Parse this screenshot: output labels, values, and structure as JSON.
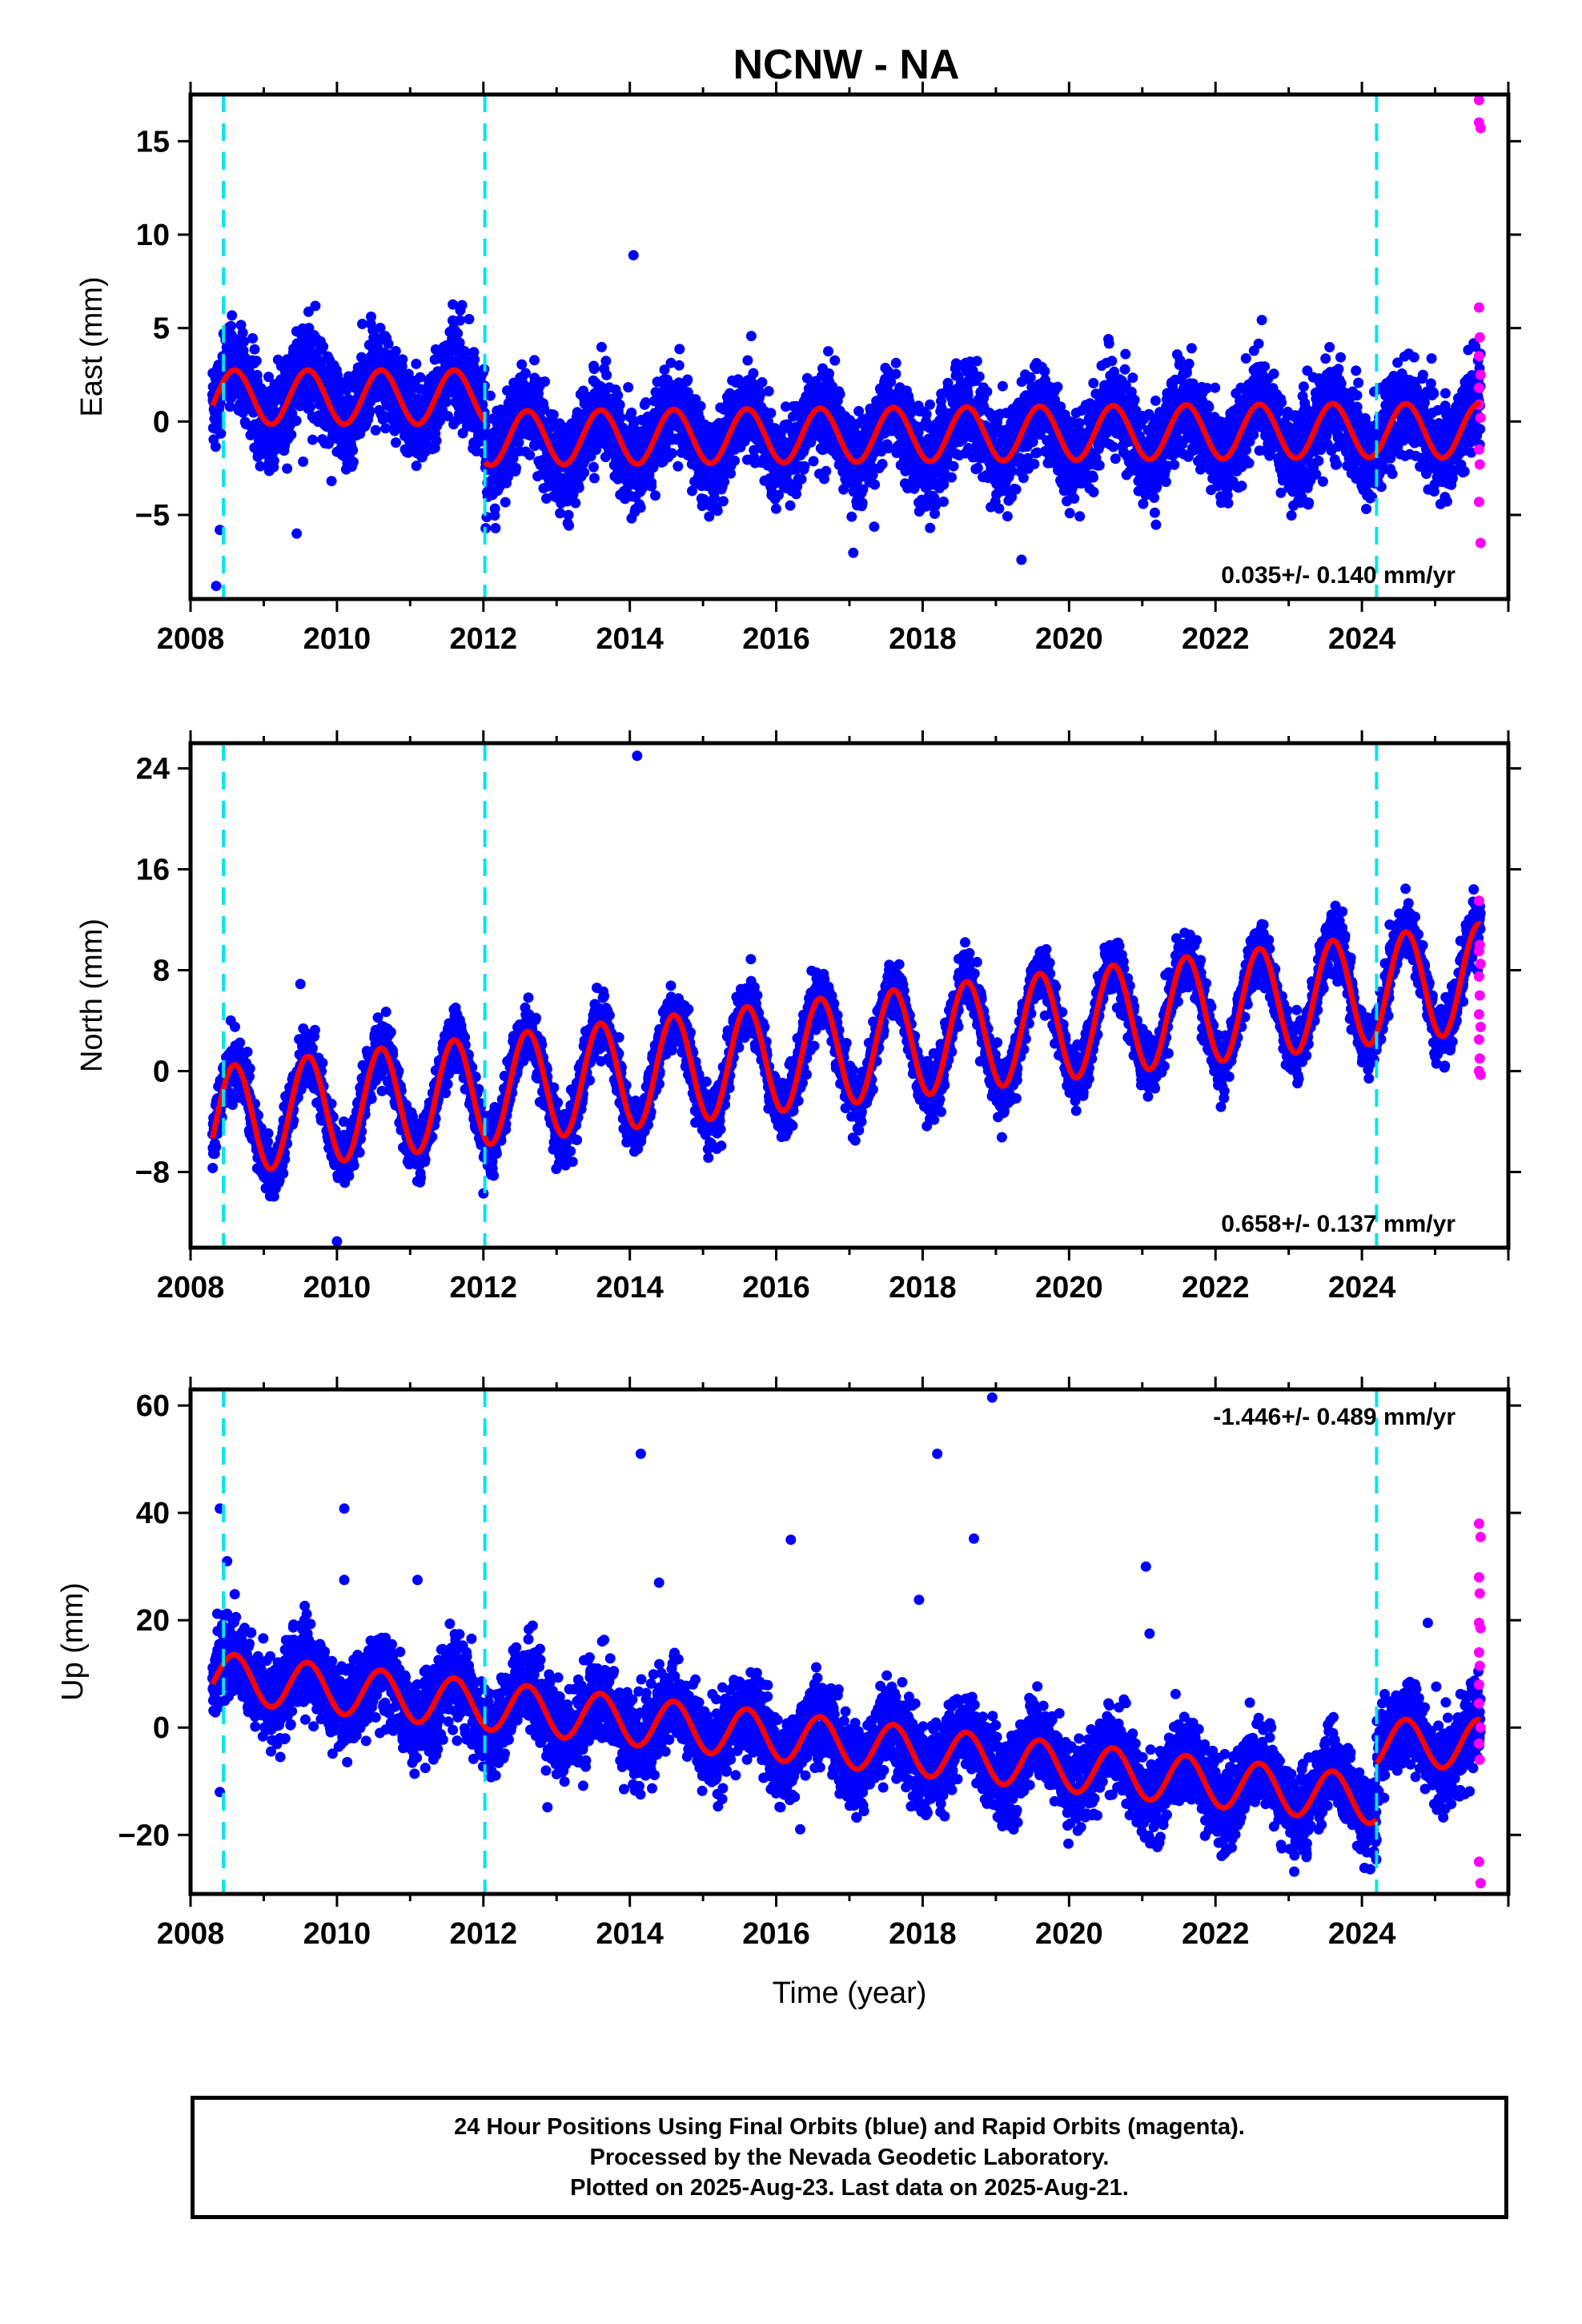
{
  "title": "NCNW - NA",
  "colors": {
    "final": "#0000ff",
    "rapid": "#ff00ff",
    "model": "#ff0000",
    "steps": "#00e5ee"
  },
  "chart_data": [
    {
      "type": "scatter",
      "panel": "east",
      "ylabel": "East (mm)",
      "xlim": [
        2008,
        2026
      ],
      "ylim": [
        -9.5,
        17.5
      ],
      "yticks": [
        15,
        10,
        5,
        0,
        -5
      ],
      "ytick_labels": [
        "15",
        "10",
        "5",
        "0",
        "−5"
      ],
      "xticks": [
        2008,
        2010,
        2012,
        2014,
        2016,
        2018,
        2020,
        2022,
        2024
      ],
      "rate_label": "0.035+/- 0.140 mm/yr",
      "rate_position": "bottom-right",
      "step_lines": [
        2008.45,
        2012.02,
        2024.2
      ],
      "model_segments": [
        {
          "start": 2008.3,
          "end": 2012.02,
          "offset": 1.3,
          "amp": 1.45,
          "trend": 0
        },
        {
          "start": 2012.02,
          "end": 2024.2,
          "offset": -0.9,
          "amp": 1.45,
          "trend": 0.035
        },
        {
          "start": 2024.2,
          "end": 2025.62,
          "offset": -0.5,
          "amp": 1.45,
          "trend": 0
        }
      ],
      "scatter_sd": 1.2,
      "outliers": [
        [
          2008.35,
          -8.8
        ],
        [
          2008.4,
          -5.8
        ],
        [
          2014.05,
          8.9
        ],
        [
          2019.35,
          -7.4
        ],
        [
          2009.45,
          -6.0
        ],
        [
          2008.45,
          4.7
        ]
      ],
      "rapid": [
        [
          2025.6,
          17.2
        ],
        [
          2025.6,
          16.0
        ],
        [
          2025.62,
          15.7
        ],
        [
          2025.6,
          6.1
        ],
        [
          2025.61,
          4.5
        ],
        [
          2025.6,
          3.5
        ],
        [
          2025.62,
          2.5
        ],
        [
          2025.6,
          1.8
        ],
        [
          2025.6,
          0.9
        ],
        [
          2025.62,
          0.2
        ],
        [
          2025.6,
          -1.5
        ],
        [
          2025.61,
          -2.3
        ],
        [
          2025.6,
          -4.3
        ],
        [
          2025.62,
          -6.5
        ]
      ]
    },
    {
      "type": "scatter",
      "panel": "north",
      "ylabel": "North (mm)",
      "xlim": [
        2008,
        2026
      ],
      "ylim": [
        -14,
        26
      ],
      "yticks": [
        24,
        16,
        8,
        0,
        -8
      ],
      "ytick_labels": [
        "24",
        "16",
        "8",
        "0",
        "−8"
      ],
      "xticks": [
        2008,
        2010,
        2012,
        2014,
        2016,
        2018,
        2020,
        2022,
        2024
      ],
      "rate_label": "0.658+/- 0.137 mm/yr",
      "rate_position": "bottom-right",
      "step_lines": [
        2008.45,
        2012.02,
        2024.2
      ],
      "model_segments": [
        {
          "start": 2008.3,
          "end": 2025.62,
          "offset": -4.0,
          "amp": 4.3,
          "trend": 0.658,
          "ref": 2008.3
        }
      ],
      "scatter_sd": 1.1,
      "outliers": [
        [
          2014.1,
          25.0
        ],
        [
          2010.0,
          -13.5
        ],
        [
          2012.0,
          -9.7
        ],
        [
          2009.5,
          6.9
        ],
        [
          2013.55,
          6.6
        ]
      ],
      "rapid": [
        [
          2025.6,
          13.5
        ],
        [
          2025.61,
          10.0
        ],
        [
          2025.6,
          9.5
        ],
        [
          2025.62,
          8.5
        ],
        [
          2025.6,
          7.5
        ],
        [
          2025.61,
          6.0
        ],
        [
          2025.6,
          4.5
        ],
        [
          2025.62,
          3.5
        ],
        [
          2025.6,
          2.5
        ],
        [
          2025.61,
          1.0
        ],
        [
          2025.6,
          0.0
        ],
        [
          2025.62,
          -0.3
        ]
      ]
    },
    {
      "type": "scatter",
      "panel": "up",
      "ylabel": "Up (mm)",
      "xlabel": "Time (year)",
      "xlim": [
        2008,
        2026
      ],
      "ylim": [
        -31,
        63
      ],
      "yticks": [
        60,
        40,
        20,
        0,
        -20
      ],
      "ytick_labels": [
        "60",
        "40",
        "20",
        "0",
        "−20"
      ],
      "xticks": [
        2008,
        2010,
        2012,
        2014,
        2016,
        2018,
        2020,
        2022,
        2024
      ],
      "rate_label": "-1.446+/- 0.489 mm/yr",
      "rate_position": "top-right",
      "step_lines": [
        2008.45,
        2012.02,
        2024.2
      ],
      "model_segments": [
        {
          "start": 2008.3,
          "end": 2024.2,
          "offset": 9.5,
          "amp": 4.5,
          "trend": -1.446,
          "ref": 2008.3
        },
        {
          "start": 2024.2,
          "end": 2025.62,
          "offset": -3.0,
          "amp": 4.5,
          "trend": 0,
          "ref": 2008.3
        }
      ],
      "scatter_sd": 3.8,
      "outliers": [
        [
          2008.4,
          40.8
        ],
        [
          2010.1,
          40.8
        ],
        [
          2010.1,
          27.5
        ],
        [
          2014.15,
          51.0
        ],
        [
          2014.4,
          27.0
        ],
        [
          2016.2,
          35.0
        ],
        [
          2017.95,
          23.8
        ],
        [
          2018.2,
          51.0
        ],
        [
          2018.7,
          35.2
        ],
        [
          2018.95,
          61.5
        ],
        [
          2021.05,
          30.0
        ],
        [
          2021.1,
          17.5
        ],
        [
          2024.9,
          19.5
        ],
        [
          2008.5,
          31.0
        ],
        [
          2008.4,
          -12.0
        ],
        [
          2011.1,
          27.5
        ]
      ],
      "rapid": [
        [
          2025.6,
          38.0
        ],
        [
          2025.62,
          35.5
        ],
        [
          2025.6,
          28.0
        ],
        [
          2025.61,
          25.0
        ],
        [
          2025.6,
          19.5
        ],
        [
          2025.62,
          18.5
        ],
        [
          2025.6,
          14.0
        ],
        [
          2025.61,
          11.5
        ],
        [
          2025.6,
          8.0
        ],
        [
          2025.6,
          4.5
        ],
        [
          2025.62,
          0.0
        ],
        [
          2025.6,
          -3.0
        ],
        [
          2025.61,
          -6.0
        ],
        [
          2025.6,
          -25.0
        ],
        [
          2025.62,
          -29.0
        ]
      ]
    }
  ],
  "footer": {
    "line1": "24 Hour Positions Using Final Orbits (blue) and Rapid Orbits (magenta).",
    "line2": "Processed by the Nevada Geodetic Laboratory.",
    "line3": "Plotted on 2025-Aug-23. Last data on 2025-Aug-21."
  }
}
